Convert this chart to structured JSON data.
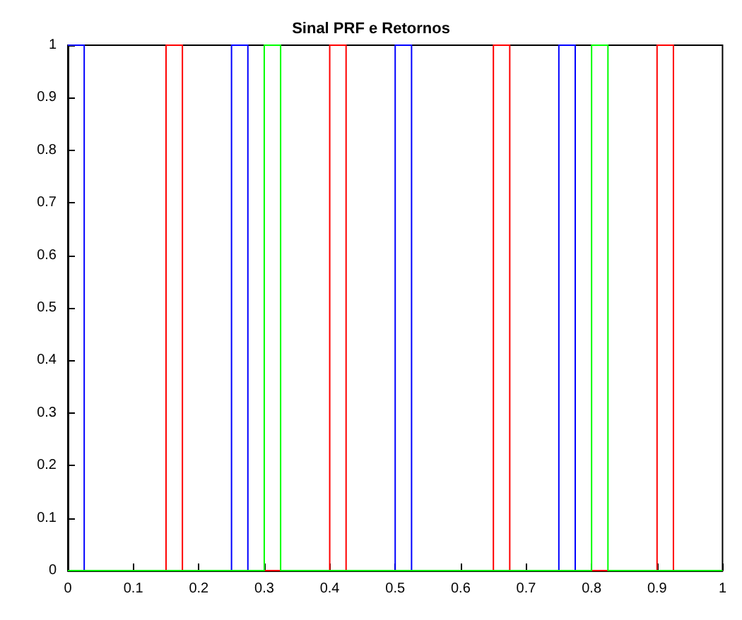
{
  "chart_data": {
    "type": "line",
    "title": "Sinal PRF e Retornos",
    "series": [
      {
        "color": "#0000ff",
        "x": [
          0,
          0.025,
          0.025,
          0.25,
          0.25,
          0.275,
          0.275,
          0.5,
          0.5,
          0.525,
          0.525,
          0.75,
          0.75,
          0.775,
          0.775,
          1
        ],
        "values": [
          1,
          1,
          0,
          0,
          1,
          1,
          0,
          0,
          1,
          1,
          0,
          0,
          1,
          1,
          0,
          0
        ]
      },
      {
        "color": "#ff0000",
        "x": [
          0,
          0.15,
          0.15,
          0.175,
          0.175,
          0.4,
          0.4,
          0.425,
          0.425,
          0.65,
          0.65,
          0.675,
          0.675,
          0.9,
          0.9,
          0.925,
          0.925,
          1
        ],
        "values": [
          0,
          0,
          1,
          1,
          0,
          0,
          1,
          1,
          0,
          0,
          1,
          1,
          0,
          0,
          1,
          1,
          0,
          0
        ]
      },
      {
        "color": "#00ff00",
        "x": [
          0,
          0.3,
          0.3,
          0.325,
          0.325,
          0.8,
          0.8,
          0.825,
          0.825,
          1
        ],
        "values": [
          0,
          0,
          1,
          1,
          0,
          0,
          1,
          1,
          0,
          0
        ]
      }
    ],
    "xlim": [
      0,
      1
    ],
    "ylim": [
      0,
      1
    ],
    "xticks": [
      0,
      0.1,
      0.2,
      0.3,
      0.4,
      0.5,
      0.6,
      0.7,
      0.8,
      0.9,
      1
    ],
    "yticks": [
      0,
      0.1,
      0.2,
      0.3,
      0.4,
      0.5,
      0.6,
      0.7,
      0.8,
      0.9,
      1
    ],
    "grid": false,
    "marker": "none",
    "line_style": "solid"
  }
}
